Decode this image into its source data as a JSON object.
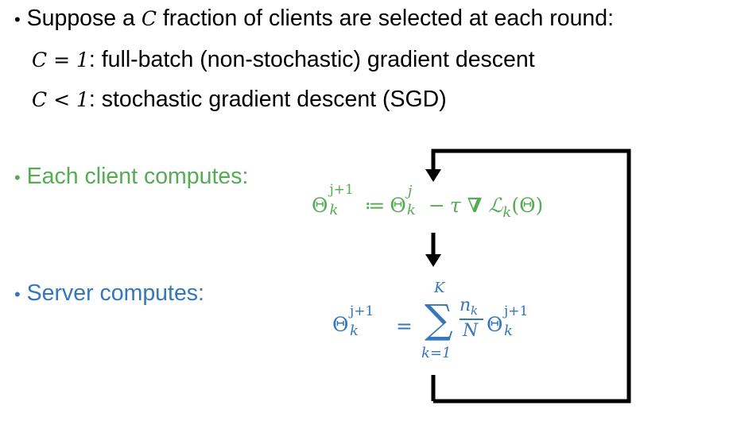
{
  "line1": {
    "bullet": "•",
    "before": "Suppose a ",
    "var": "C",
    "after": " fraction of clients are selected at each round:"
  },
  "line2": {
    "lhs": "C = 1",
    "colon": ":",
    "text": " full-batch (non-stochastic) gradient descent"
  },
  "line3": {
    "lhs": "C < 1",
    "colon": ":",
    "text": " stochastic gradient descent (SGD)"
  },
  "client": {
    "bullet": "•",
    "label": "Each client computes:",
    "eq": {
      "theta": "Θ",
      "sup1": "j+1",
      "sub1": "k",
      "assign": "≔",
      "sup2": "j",
      "sub2": "k",
      "minus": "−",
      "tau": "τ",
      "nabla": "∇",
      "loss": "ℒ",
      "loss_sub": "k",
      "arg": "(Θ)"
    }
  },
  "server": {
    "bullet": "•",
    "label": "Server computes:",
    "eq": {
      "theta": "Θ",
      "sup": "j+1",
      "sub": "k",
      "equals": "=",
      "sum": "∑",
      "sum_upper": "K",
      "sum_lower": "k=1",
      "num": "n",
      "num_sub": "k",
      "den": "N"
    }
  },
  "colors": {
    "text": "#000000",
    "green": "#55ac55",
    "blue": "#3577bb",
    "arrow": "#000000"
  }
}
